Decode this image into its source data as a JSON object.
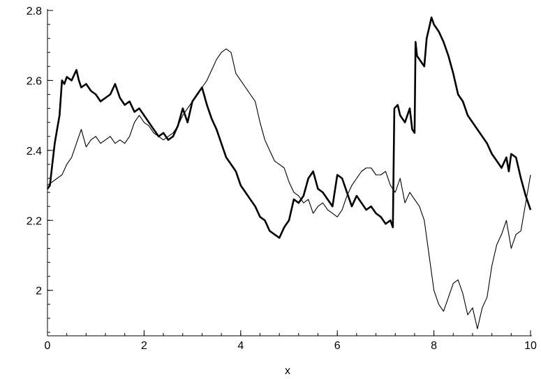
{
  "chart_data": {
    "type": "line",
    "title": "",
    "xlabel": "x",
    "ylabel": "",
    "xlim": [
      0,
      10
    ],
    "ylim": [
      1.87,
      2.8
    ],
    "grid": false,
    "x_ticks": [
      0,
      2,
      4,
      6,
      8,
      10
    ],
    "x_tick_labels": [
      "0",
      "2",
      "4",
      "6",
      "8",
      "10"
    ],
    "y_ticks": [
      2,
      2.2,
      2.4,
      2.6,
      2.8
    ],
    "y_tick_labels": [
      "2",
      "2.2",
      "2.4",
      "2.6",
      "2.8"
    ],
    "series": [
      {
        "style": "thick",
        "color": "#000000",
        "x": [
          0,
          0.05,
          0.1,
          0.15,
          0.2,
          0.25,
          0.3,
          0.35,
          0.4,
          0.5,
          0.6,
          0.65,
          0.7,
          0.8,
          0.9,
          1.0,
          1.1,
          1.2,
          1.3,
          1.4,
          1.5,
          1.6,
          1.7,
          1.8,
          1.9,
          2.0,
          2.1,
          2.2,
          2.3,
          2.4,
          2.5,
          2.6,
          2.7,
          2.8,
          2.9,
          3.0,
          3.1,
          3.2,
          3.3,
          3.4,
          3.5,
          3.6,
          3.7,
          3.8,
          3.9,
          4.0,
          4.1,
          4.2,
          4.3,
          4.4,
          4.5,
          4.6,
          4.7,
          4.8,
          4.9,
          5.0,
          5.1,
          5.2,
          5.3,
          5.4,
          5.5,
          5.6,
          5.7,
          5.8,
          5.9,
          6.0,
          6.1,
          6.2,
          6.3,
          6.4,
          6.5,
          6.6,
          6.7,
          6.8,
          6.9,
          7.0,
          7.1,
          7.15,
          7.18,
          7.25,
          7.3,
          7.4,
          7.5,
          7.55,
          7.6,
          7.62,
          7.65,
          7.75,
          7.8,
          7.85,
          7.9,
          7.95,
          8.0,
          8.1,
          8.2,
          8.3,
          8.4,
          8.5,
          8.6,
          8.7,
          8.8,
          8.9,
          9.0,
          9.1,
          9.2,
          9.3,
          9.4,
          9.5,
          9.55,
          9.6,
          9.7,
          9.8,
          9.9,
          10.0
        ],
        "y": [
          2.29,
          2.3,
          2.36,
          2.42,
          2.46,
          2.5,
          2.6,
          2.59,
          2.61,
          2.6,
          2.63,
          2.6,
          2.58,
          2.59,
          2.57,
          2.56,
          2.54,
          2.55,
          2.56,
          2.59,
          2.55,
          2.53,
          2.54,
          2.51,
          2.52,
          2.5,
          2.48,
          2.46,
          2.44,
          2.45,
          2.43,
          2.44,
          2.47,
          2.52,
          2.48,
          2.54,
          2.56,
          2.58,
          2.53,
          2.49,
          2.46,
          2.42,
          2.38,
          2.36,
          2.34,
          2.3,
          2.28,
          2.26,
          2.24,
          2.21,
          2.2,
          2.17,
          2.16,
          2.15,
          2.18,
          2.2,
          2.26,
          2.25,
          2.27,
          2.32,
          2.34,
          2.29,
          2.28,
          2.26,
          2.24,
          2.33,
          2.32,
          2.28,
          2.24,
          2.27,
          2.25,
          2.23,
          2.24,
          2.22,
          2.21,
          2.19,
          2.2,
          2.18,
          2.52,
          2.53,
          2.5,
          2.48,
          2.52,
          2.46,
          2.45,
          2.71,
          2.67,
          2.65,
          2.64,
          2.72,
          2.75,
          2.78,
          2.76,
          2.74,
          2.71,
          2.67,
          2.62,
          2.56,
          2.54,
          2.5,
          2.48,
          2.46,
          2.44,
          2.42,
          2.39,
          2.37,
          2.35,
          2.38,
          2.34,
          2.39,
          2.38,
          2.32,
          2.27,
          2.23
        ]
      },
      {
        "style": "thin",
        "color": "#000000",
        "x": [
          0,
          0.1,
          0.2,
          0.3,
          0.4,
          0.5,
          0.6,
          0.7,
          0.8,
          0.9,
          1.0,
          1.1,
          1.2,
          1.3,
          1.4,
          1.5,
          1.6,
          1.7,
          1.8,
          1.9,
          2.0,
          2.1,
          2.2,
          2.3,
          2.4,
          2.5,
          2.6,
          2.7,
          2.8,
          2.9,
          3.0,
          3.1,
          3.2,
          3.3,
          3.4,
          3.5,
          3.6,
          3.7,
          3.8,
          3.9,
          4.0,
          4.1,
          4.2,
          4.3,
          4.4,
          4.5,
          4.6,
          4.7,
          4.8,
          4.9,
          5.0,
          5.1,
          5.2,
          5.3,
          5.4,
          5.5,
          5.6,
          5.7,
          5.8,
          5.9,
          6.0,
          6.1,
          6.2,
          6.3,
          6.4,
          6.5,
          6.6,
          6.7,
          6.8,
          6.9,
          7.0,
          7.1,
          7.2,
          7.3,
          7.4,
          7.5,
          7.6,
          7.7,
          7.8,
          7.9,
          8.0,
          8.1,
          8.2,
          8.3,
          8.4,
          8.5,
          8.6,
          8.7,
          8.8,
          8.9,
          9.0,
          9.1,
          9.2,
          9.3,
          9.4,
          9.5,
          9.6,
          9.7,
          9.8,
          9.9,
          10.0
        ],
        "y": [
          2.3,
          2.31,
          2.32,
          2.33,
          2.36,
          2.38,
          2.42,
          2.46,
          2.41,
          2.43,
          2.44,
          2.42,
          2.43,
          2.44,
          2.42,
          2.43,
          2.42,
          2.44,
          2.48,
          2.5,
          2.48,
          2.47,
          2.45,
          2.44,
          2.43,
          2.44,
          2.45,
          2.47,
          2.5,
          2.52,
          2.54,
          2.56,
          2.58,
          2.6,
          2.63,
          2.66,
          2.68,
          2.69,
          2.68,
          2.62,
          2.6,
          2.58,
          2.56,
          2.54,
          2.48,
          2.43,
          2.4,
          2.37,
          2.36,
          2.35,
          2.31,
          2.28,
          2.27,
          2.25,
          2.26,
          2.22,
          2.24,
          2.25,
          2.23,
          2.22,
          2.21,
          2.23,
          2.27,
          2.3,
          2.32,
          2.34,
          2.35,
          2.35,
          2.33,
          2.33,
          2.34,
          2.3,
          2.28,
          2.32,
          2.25,
          2.28,
          2.26,
          2.24,
          2.2,
          2.1,
          2.0,
          1.96,
          1.94,
          1.98,
          2.02,
          2.03,
          1.99,
          1.93,
          1.95,
          1.89,
          1.95,
          1.98,
          2.07,
          2.13,
          2.16,
          2.2,
          2.12,
          2.16,
          2.17,
          2.25,
          2.33
        ]
      }
    ]
  }
}
